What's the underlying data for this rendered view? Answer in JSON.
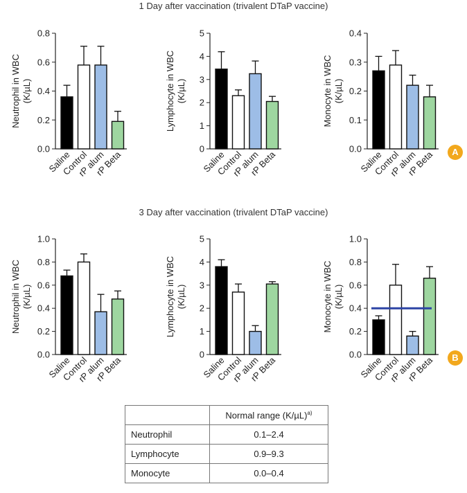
{
  "section_a": {
    "title": "1 Day after vaccination (trivalent DTaP vaccine)",
    "badge": "A"
  },
  "section_b": {
    "title": "3 Day after vaccination (trivalent DTaP vaccine)",
    "badge": "B"
  },
  "colors": {
    "Saline": "#000000",
    "Control": "#ffffff",
    "rP alum": "#9dbde6",
    "rP Beta": "#9ed6a0",
    "reference_line": "#2c44a5"
  },
  "chart_data": [
    {
      "type": "bar",
      "title": "",
      "section": "A",
      "ylabel": "Neutrophil in WBC (K/µL)",
      "categories": [
        "Saline",
        "Control",
        "rP alum",
        "rP Beta"
      ],
      "values": [
        0.36,
        0.58,
        0.58,
        0.19
      ],
      "errors": [
        0.08,
        0.13,
        0.13,
        0.07
      ],
      "ylim": [
        0,
        0.8
      ],
      "yticks": [
        "0.0",
        "0.2",
        "0.4",
        "0.6",
        "0.8"
      ]
    },
    {
      "type": "bar",
      "title": "",
      "section": "A",
      "ylabel": "Lymphocyte in WBC (K/µL)",
      "categories": [
        "Saline",
        "Control",
        "rP alum",
        "rP Beta"
      ],
      "values": [
        3.45,
        2.3,
        3.25,
        2.05
      ],
      "errors": [
        0.75,
        0.25,
        0.55,
        0.22
      ],
      "ylim": [
        0,
        5
      ],
      "yticks": [
        "0",
        "1",
        "2",
        "3",
        "4",
        "5"
      ]
    },
    {
      "type": "bar",
      "title": "",
      "section": "A",
      "ylabel": "Monocyte in WBC (K/µL)",
      "categories": [
        "Saline",
        "Control",
        "rP alum",
        "rP Beta"
      ],
      "values": [
        0.27,
        0.29,
        0.22,
        0.18
      ],
      "errors": [
        0.05,
        0.05,
        0.035,
        0.04
      ],
      "ylim": [
        0,
        0.4
      ],
      "yticks": [
        "0.0",
        "0.1",
        "0.2",
        "0.3",
        "0.4"
      ]
    },
    {
      "type": "bar",
      "title": "",
      "section": "B",
      "ylabel": "Neutrophil in WBC (K/µL)",
      "categories": [
        "Saline",
        "Control",
        "rP alum",
        "rP Beta"
      ],
      "values": [
        0.68,
        0.8,
        0.37,
        0.48
      ],
      "errors": [
        0.05,
        0.07,
        0.15,
        0.07
      ],
      "ylim": [
        0,
        1.0
      ],
      "yticks": [
        "0.0",
        "0.2",
        "0.4",
        "0.6",
        "0.8",
        "1.0"
      ]
    },
    {
      "type": "bar",
      "title": "",
      "section": "B",
      "ylabel": "Lymphocyte in WBC (K/µL)",
      "categories": [
        "Saline",
        "Control",
        "rP alum",
        "rP Beta"
      ],
      "values": [
        3.8,
        2.7,
        1.0,
        3.05
      ],
      "errors": [
        0.3,
        0.35,
        0.25,
        0.1
      ],
      "ylim": [
        0,
        5
      ],
      "yticks": [
        "0",
        "1",
        "2",
        "3",
        "4",
        "5"
      ]
    },
    {
      "type": "bar",
      "title": "",
      "section": "B",
      "ylabel": "Monocyte in WBC (K/µL)",
      "categories": [
        "Saline",
        "Control",
        "rP alum",
        "rP Beta"
      ],
      "values": [
        0.3,
        0.6,
        0.16,
        0.66
      ],
      "errors": [
        0.035,
        0.18,
        0.04,
        0.1
      ],
      "ylim": [
        0,
        1.0
      ],
      "yticks": [
        "0.0",
        "0.2",
        "0.4",
        "0.6",
        "0.8",
        "1.0"
      ],
      "reference_line": 0.4
    }
  ],
  "reference_table": {
    "header": "Normal range (K/µL)",
    "header_sup": "a)",
    "rows": [
      {
        "name": "Neutrophil",
        "range": "0.1–2.4"
      },
      {
        "name": "Lymphocyte",
        "range": "0.9–9.3"
      },
      {
        "name": "Monocyte",
        "range": "0.0–0.4"
      }
    ]
  }
}
